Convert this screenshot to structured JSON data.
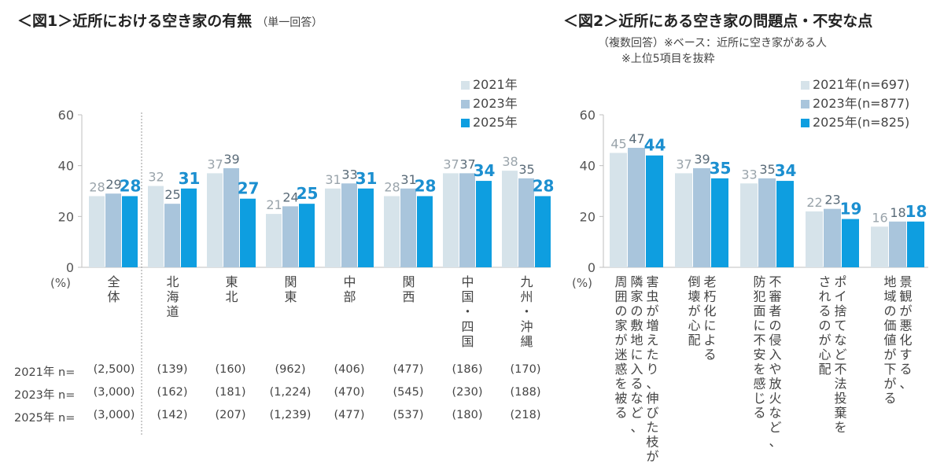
{
  "fig1": {
    "title": "＜図1＞近所における空き家の有無",
    "subtitle": "（単一回答）",
    "legend": [
      "2021年",
      "2023年",
      "2025年"
    ],
    "n_table": {
      "rows": [
        {
          "label": "2021年 n=",
          "values": [
            "(2,500)",
            "(139)",
            "(160)",
            "(962)",
            "(406)",
            "(477)",
            "(186)",
            "(170)"
          ]
        },
        {
          "label": "2023年 n=",
          "values": [
            "(3,000)",
            "(162)",
            "(181)",
            "(1,224)",
            "(470)",
            "(545)",
            "(230)",
            "(188)"
          ]
        },
        {
          "label": "2025年 n=",
          "values": [
            "(3,000)",
            "(142)",
            "(207)",
            "(1,239)",
            "(477)",
            "(537)",
            "(180)",
            "(218)"
          ]
        }
      ]
    }
  },
  "fig2": {
    "title": "＜図2＞近所にある空き家の問題点・不安な点",
    "note1": "（複数回答）※ベース：近所に空き家がある人",
    "note2": "※上位5項目を抜粋",
    "legend": [
      "2021年(n=697)",
      "2023年(n=877)",
      "2025年(n=825)"
    ]
  },
  "colors": {
    "y2021": "#d6e3ea",
    "y2023": "#a9c5dc",
    "y2025": "#0e9ee0",
    "label_old": "#9aa4ab",
    "label_mid": "#5a6b78",
    "label_new": "#1b8fd0"
  },
  "chart_data": [
    {
      "type": "bar",
      "title": "＜図1＞近所における空き家の有無（単一回答）",
      "categories": [
        "全体",
        "北海道",
        "東北",
        "関東",
        "中部",
        "関西",
        "中国・四国",
        "九州・沖縄"
      ],
      "category_lines": [
        [
          "全",
          "体"
        ],
        [
          "北",
          "海",
          "道"
        ],
        [
          "東",
          "北"
        ],
        [
          "関",
          "東"
        ],
        [
          "中",
          "部"
        ],
        [
          "関",
          "西"
        ],
        [
          "中",
          "国",
          "・",
          "四",
          "国"
        ],
        [
          "九",
          "州",
          "・",
          "沖",
          "縄"
        ]
      ],
      "series": [
        {
          "name": "2021年",
          "values": [
            28,
            32,
            37,
            21,
            31,
            28,
            37,
            38
          ]
        },
        {
          "name": "2023年",
          "values": [
            29,
            25,
            39,
            24,
            33,
            31,
            37,
            35
          ]
        },
        {
          "name": "2025年",
          "values": [
            28,
            31,
            27,
            25,
            31,
            28,
            34,
            28
          ]
        }
      ],
      "ylabel": "(%)",
      "ylim": [
        0,
        60
      ],
      "yticks": [
        0,
        20,
        40,
        60
      ],
      "grid": false,
      "legend": "top-right"
    },
    {
      "type": "bar",
      "title": "＜図2＞近所にある空き家の問題点・不安な点",
      "categories": [
        "害虫が増えたり、伸びた枝が隣家の敷地に入るなど、周囲の家が迷惑を被る",
        "老朽化による倒壊が心配",
        "不審者の侵入や放火など、防犯面に不安を感じる",
        "ポイ捨てなど不法投棄をされるのが心配",
        "景観が悪化する、地域の価値が下がる"
      ],
      "category_lines": [
        [
          "害虫が増えたり、伸びた枝が",
          "隣家の敷地に入るなど、",
          "周囲の家が迷惑を被る"
        ],
        [
          "老朽化による",
          "倒壊が心配"
        ],
        [
          "不審者の侵入や放火など、",
          "防犯面に不安を感じる"
        ],
        [
          "ポイ捨てなど不法投棄を",
          "されるのが心配"
        ],
        [
          "景観が悪化する、",
          "地域の価値が下がる"
        ]
      ],
      "series": [
        {
          "name": "2021年(n=697)",
          "values": [
            45,
            37,
            33,
            22,
            16
          ]
        },
        {
          "name": "2023年(n=877)",
          "values": [
            47,
            39,
            35,
            23,
            18
          ]
        },
        {
          "name": "2025年(n=825)",
          "values": [
            44,
            35,
            34,
            19,
            18
          ]
        }
      ],
      "ylabel": "(%)",
      "ylim": [
        0,
        60
      ],
      "yticks": [
        0,
        20,
        40,
        60
      ],
      "grid": false,
      "legend": "top-right"
    }
  ]
}
